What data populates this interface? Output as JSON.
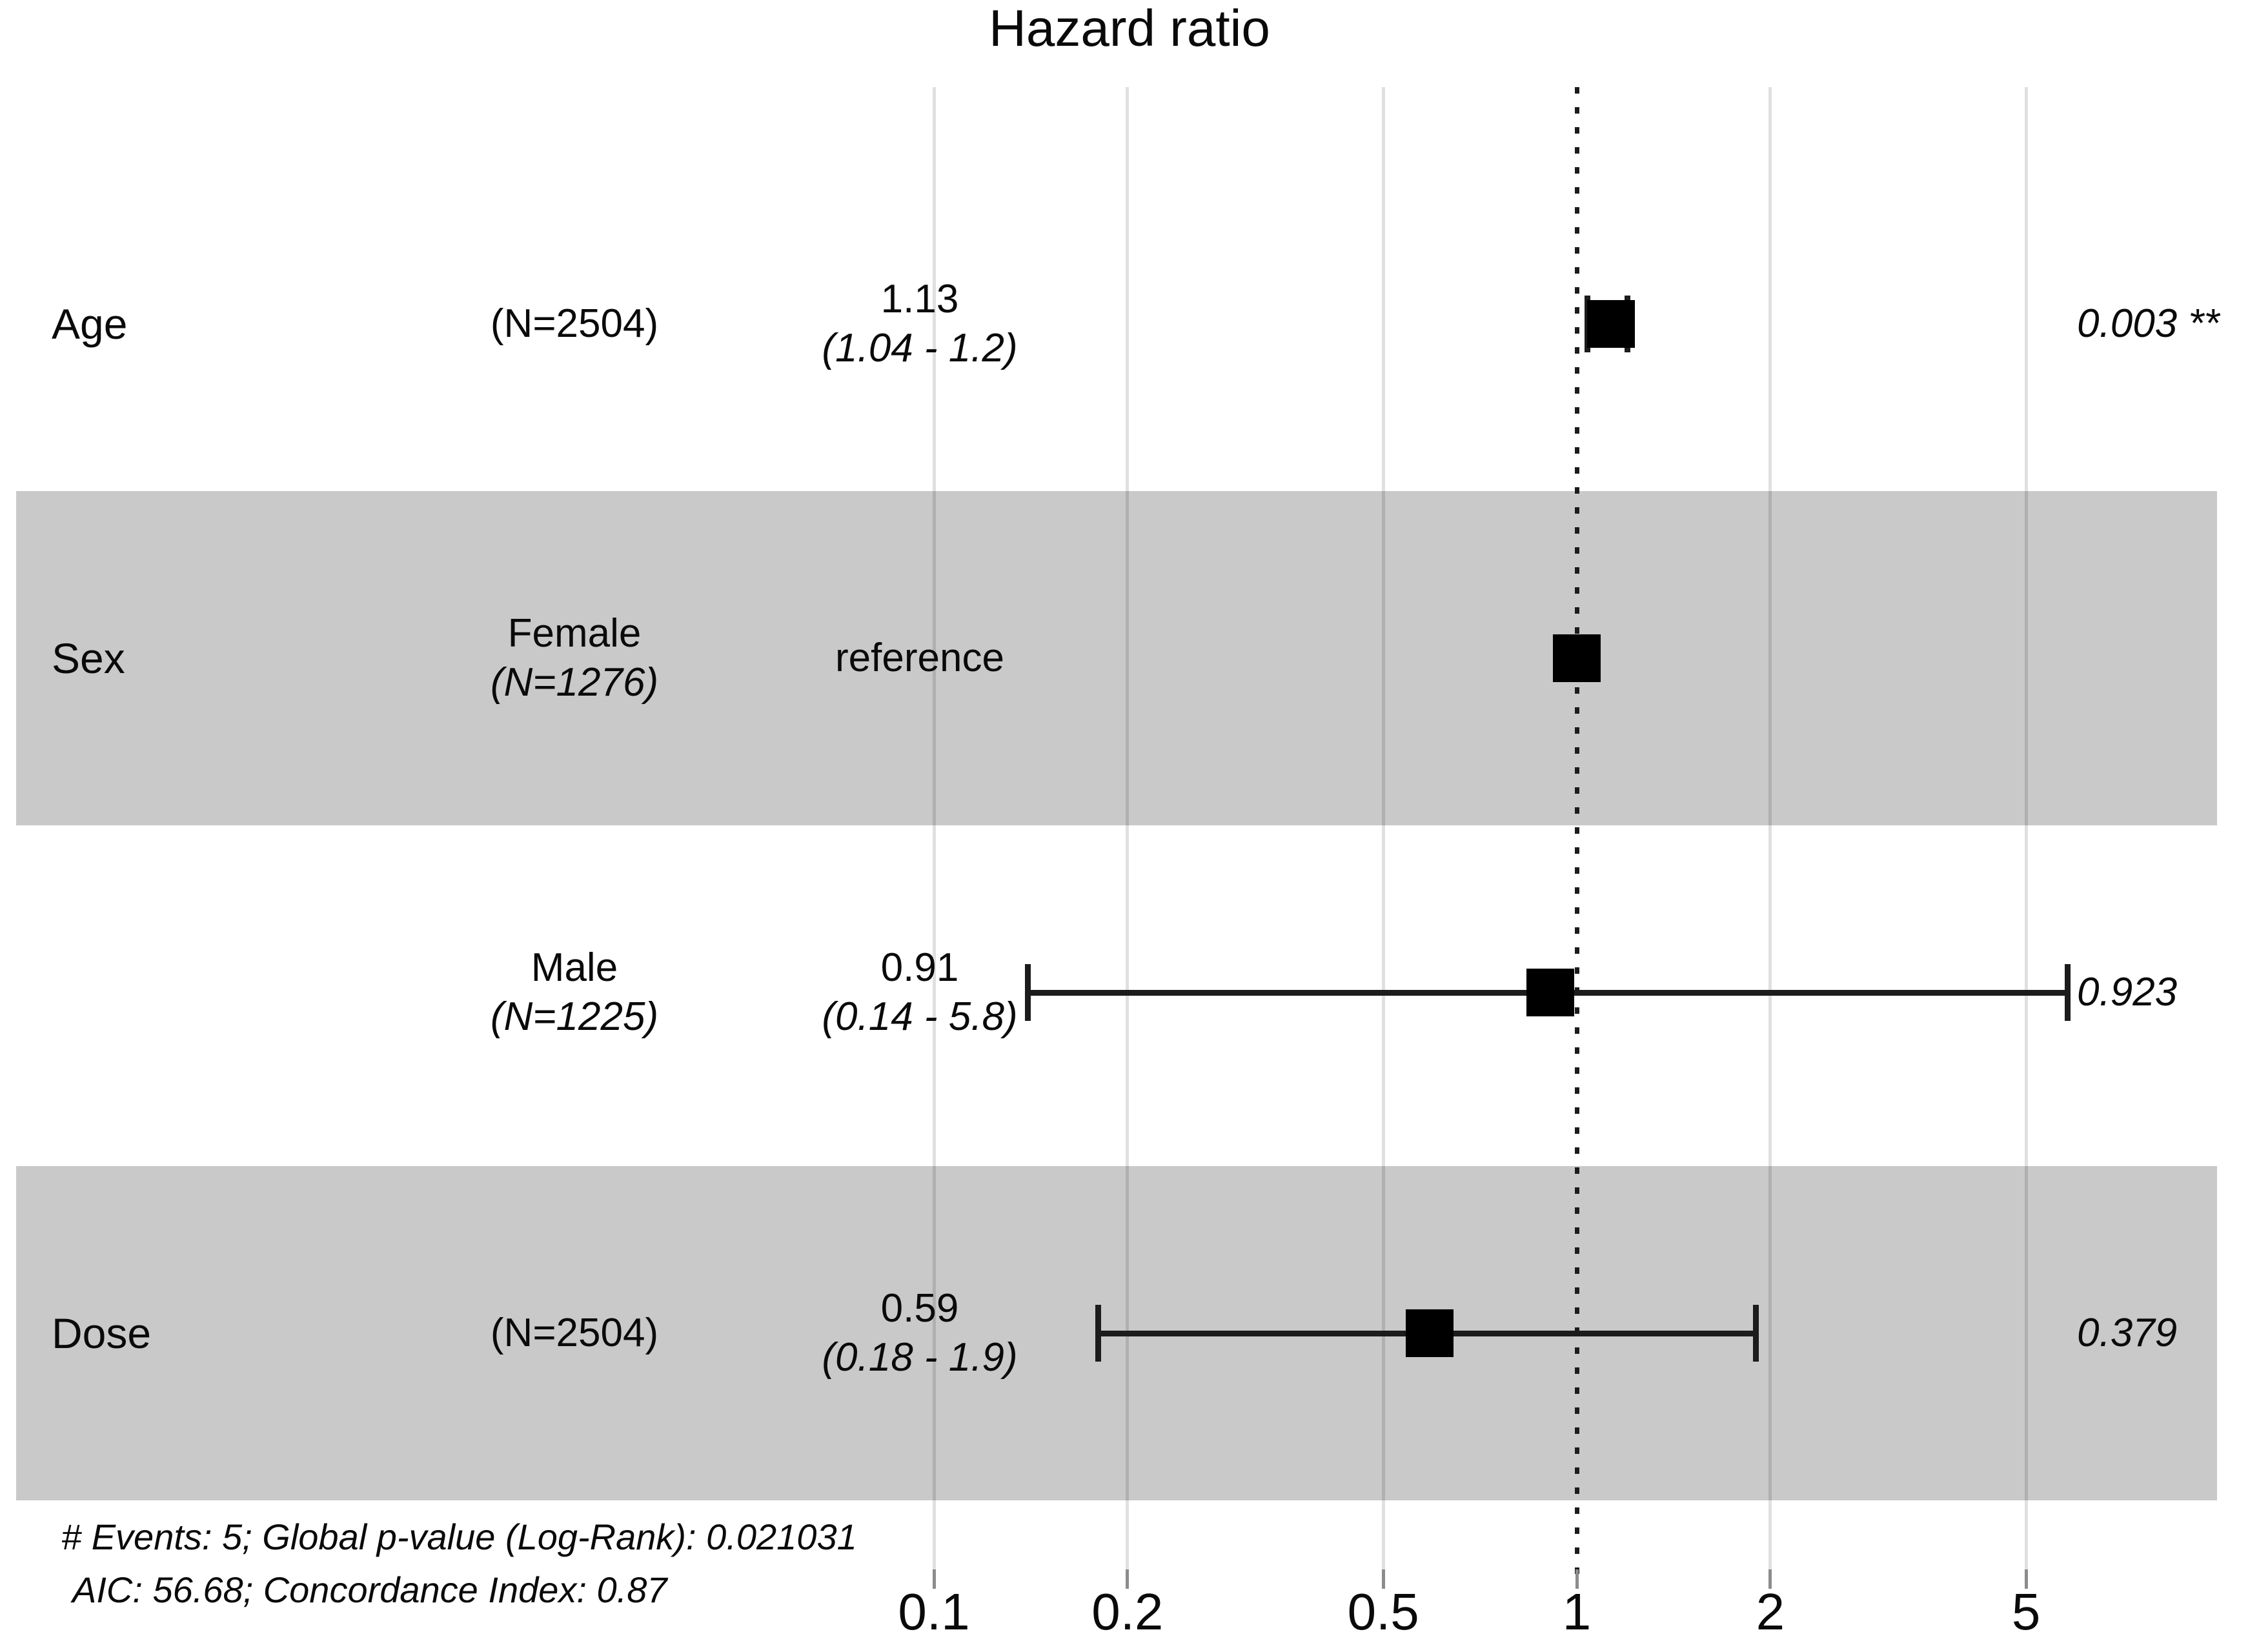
{
  "title": "Hazard ratio",
  "axis": {
    "scale": "log10",
    "ticks": [
      0.1,
      0.2,
      0.5,
      1,
      2,
      5
    ],
    "tick_labels": [
      "0.1",
      "0.2",
      "0.5",
      "1",
      "2",
      "5"
    ],
    "reference_line": 1
  },
  "rows": [
    {
      "variable": "Age",
      "level": "",
      "n_label": "(N=2504)",
      "estimate_label": "1.13",
      "ci_label": "(1.04 - 1.2)",
      "estimate": 1.13,
      "ci_low": 1.04,
      "ci_high": 1.2,
      "p_label": "0.003 **",
      "shaded": false
    },
    {
      "variable": "Sex",
      "level": "Female",
      "n_label": "(N=1276)",
      "estimate_label": "reference",
      "ci_label": "",
      "estimate": 1.0,
      "ci_low": null,
      "ci_high": null,
      "p_label": "",
      "shaded": true
    },
    {
      "variable": "",
      "level": "Male",
      "n_label": "(N=1225)",
      "estimate_label": "0.91",
      "ci_label": "(0.14 - 5.8)",
      "estimate": 0.91,
      "ci_low": 0.14,
      "ci_high": 5.8,
      "p_label": "0.923",
      "shaded": false
    },
    {
      "variable": "Dose",
      "level": "",
      "n_label": "(N=2504)",
      "estimate_label": "0.59",
      "ci_label": "(0.18 - 1.9)",
      "estimate": 0.59,
      "ci_low": 0.18,
      "ci_high": 1.9,
      "p_label": "0.379",
      "shaded": true
    }
  ],
  "footer": {
    "line1": "# Events: 5; Global p-value (Log-Rank): 0.021031",
    "line2": "AIC: 56.68; Concordance Index: 0.87"
  },
  "colors": {
    "band": "#c9c9c9",
    "grid": "rgba(0,0,0,0.12)",
    "reference_line": "#1c1c1c",
    "marker": "#000000",
    "whisker": "#1c1c1c",
    "text": "#0a0a0a"
  },
  "chart_data": {
    "type": "scatter",
    "subtype": "forest-plot",
    "title": "Hazard ratio",
    "x_scale": "log10",
    "x_ticks": [
      0.1,
      0.2,
      0.5,
      1,
      2,
      5
    ],
    "reference_line": 1,
    "legend": "none",
    "grid": "vertical-only",
    "rows": [
      {
        "variable": "Age",
        "level": "",
        "n": 2504,
        "hazard_ratio": 1.13,
        "ci_low": 1.04,
        "ci_high": 1.2,
        "p_value": "0.003",
        "significance": "**"
      },
      {
        "variable": "Sex",
        "level": "Female",
        "n": 1276,
        "hazard_ratio": 1.0,
        "ci_low": null,
        "ci_high": null,
        "p_value": "",
        "significance": "",
        "note": "reference"
      },
      {
        "variable": "Sex",
        "level": "Male",
        "n": 1225,
        "hazard_ratio": 0.91,
        "ci_low": 0.14,
        "ci_high": 5.8,
        "p_value": "0.923",
        "significance": ""
      },
      {
        "variable": "Dose",
        "level": "",
        "n": 2504,
        "hazard_ratio": 0.59,
        "ci_low": 0.18,
        "ci_high": 1.9,
        "p_value": "0.379",
        "significance": ""
      }
    ],
    "events": 5,
    "global_p_value_logrank": 0.021031,
    "aic": 56.68,
    "concordance_index": 0.87
  }
}
